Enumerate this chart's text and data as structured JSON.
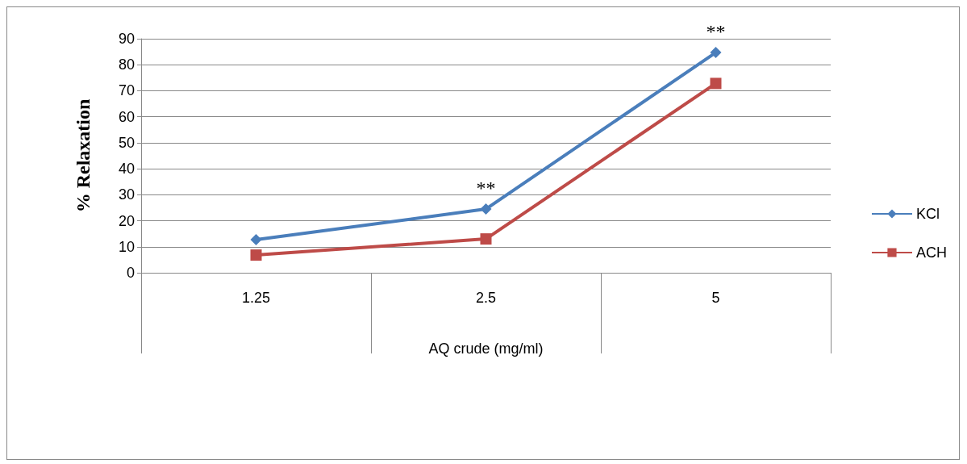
{
  "chart_data": {
    "type": "line",
    "xlabel": "AQ crude (mg/ml)",
    "ylabel": "% Relaxation",
    "categories": [
      "1.25",
      "2.5",
      "5"
    ],
    "series": [
      {
        "name": "KCl",
        "color": "#4a7ebb",
        "marker": "diamond",
        "values": [
          12.7,
          24.5,
          84.7
        ]
      },
      {
        "name": "ACH",
        "color": "#be4b48",
        "marker": "square",
        "values": [
          6.8,
          13,
          72.8
        ]
      }
    ],
    "ylim": [
      0,
      90
    ],
    "yticks": [
      0,
      10,
      20,
      30,
      40,
      50,
      60,
      70,
      80,
      90
    ],
    "grid": "y",
    "legend": "right",
    "annotations": [
      {
        "text": "**",
        "x": "2.5",
        "y": 24.5
      },
      {
        "text": "**",
        "x": "5",
        "y": 84.7
      }
    ]
  }
}
